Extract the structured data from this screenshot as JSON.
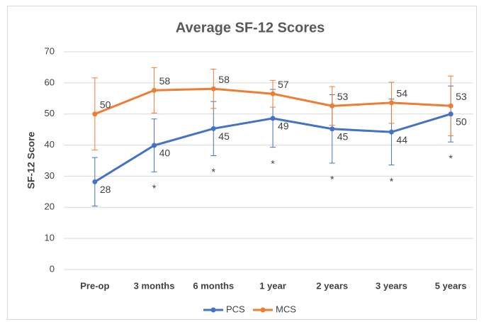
{
  "chart_data": {
    "type": "line",
    "title": "Average SF-12 Scores",
    "y_label": "SF-12 Score",
    "categories": [
      "Pre-op",
      "3 months",
      "6 months",
      "1 year",
      "2 years",
      "3 years",
      "5 years"
    ],
    "series": [
      {
        "name": "PCS",
        "color": "#4472c4",
        "values": [
          28.2,
          39.9,
          45.3,
          48.6,
          45.2,
          44.2,
          50.0
        ],
        "value_labels": [
          "28",
          "40",
          "45",
          "49",
          "45",
          "44",
          "50"
        ],
        "errors": [
          7.8,
          8.5,
          8.7,
          9.3,
          11,
          10.6,
          9
        ]
      },
      {
        "name": "MCS",
        "color": "#ed7d31",
        "values": [
          50.0,
          57.6,
          58.1,
          56.5,
          52.6,
          53.6,
          52.6
        ],
        "value_labels": [
          "50",
          "58",
          "58",
          "57",
          "53",
          "54",
          "53"
        ],
        "errors": [
          11.6,
          7.3,
          6.3,
          4.3,
          6.2,
          6.6,
          9.6
        ]
      }
    ],
    "annotations": [
      {
        "text": "*",
        "category": "3 months"
      },
      {
        "text": "*",
        "category": "6 months"
      },
      {
        "text": "*",
        "category": "1 year"
      },
      {
        "text": "*",
        "category": "2 years"
      },
      {
        "text": "*",
        "category": "3 years"
      },
      {
        "text": "*",
        "category": "5 years"
      }
    ],
    "ylim": [
      0,
      70
    ],
    "yticks": [
      0,
      10,
      20,
      30,
      40,
      50,
      60,
      70
    ],
    "grid": true,
    "legend": "bottom"
  }
}
